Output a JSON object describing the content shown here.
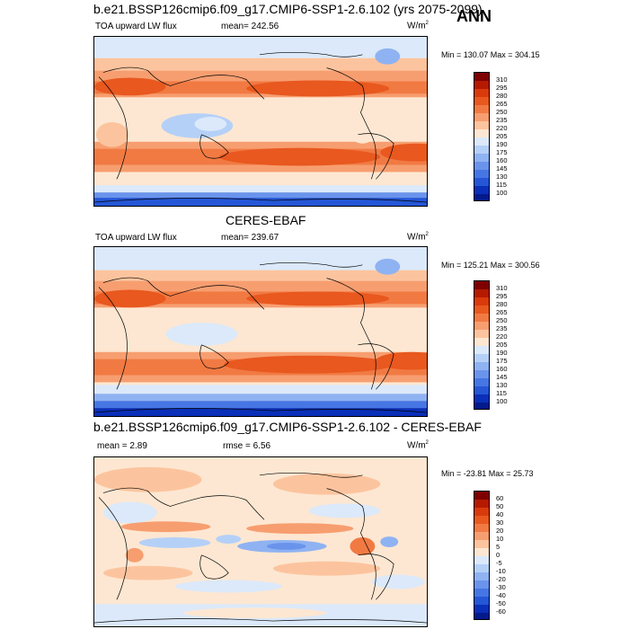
{
  "season_label": "ANN",
  "panels": [
    {
      "title": "b.e21.BSSP126cmip6.f09_g17.CMIP6-SSP1-2.6.102 (yrs 2075-2099)",
      "left_label": "TOA upward LW flux",
      "mean_text": "mean= 242.56",
      "units": "W/m",
      "units_sup": "2",
      "minmax": "Min = 130.07 Max = 304.15",
      "colorbar_labels": [
        "310",
        "295",
        "280",
        "265",
        "250",
        "235",
        "220",
        "205",
        "190",
        "175",
        "160",
        "145",
        "130",
        "115",
        "100"
      ]
    },
    {
      "title": "CERES-EBAF",
      "left_label": "TOA upward LW flux",
      "mean_text": "mean= 239.67",
      "units": "W/m",
      "units_sup": "2",
      "minmax": "Min = 125.21 Max = 300.56",
      "colorbar_labels": [
        "310",
        "295",
        "280",
        "265",
        "250",
        "235",
        "220",
        "205",
        "190",
        "175",
        "160",
        "145",
        "130",
        "115",
        "100"
      ]
    },
    {
      "title": "b.e21.BSSP126cmip6.f09_g17.CMIP6-SSP1-2.6.102 - CERES-EBAF",
      "mean_text": "mean =   2.89",
      "rmse_text": "rmse =   6.56",
      "units": "W/m",
      "units_sup": "2",
      "minmax": "Min = -23.81 Max =  25.73",
      "colorbar_labels": [
        "60",
        "50",
        "40",
        "30",
        "20",
        "10",
        "5",
        "0",
        "-5",
        "-10",
        "-20",
        "-30",
        "-40",
        "-50",
        "-60"
      ]
    }
  ],
  "colors": {
    "flux_scale": [
      "#7f0000",
      "#b51a00",
      "#d93a0b",
      "#e8581f",
      "#f17a43",
      "#f79e70",
      "#fcc49e",
      "#fde7d2",
      "#dbe9fa",
      "#b5d0f7",
      "#8fb2f2",
      "#6a94ec",
      "#4676e4",
      "#2456d6",
      "#0a2fb8",
      "#031a8c"
    ],
    "diff_scale": [
      "#7f0000",
      "#b51a00",
      "#d93a0b",
      "#e8581f",
      "#f17a43",
      "#f79e70",
      "#fcc49e",
      "#fde7d2",
      "#dbe9fa",
      "#b5d0f7",
      "#8fb2f2",
      "#6a94ec",
      "#4676e4",
      "#2456d6",
      "#0a2fb8",
      "#031a8c"
    ]
  }
}
